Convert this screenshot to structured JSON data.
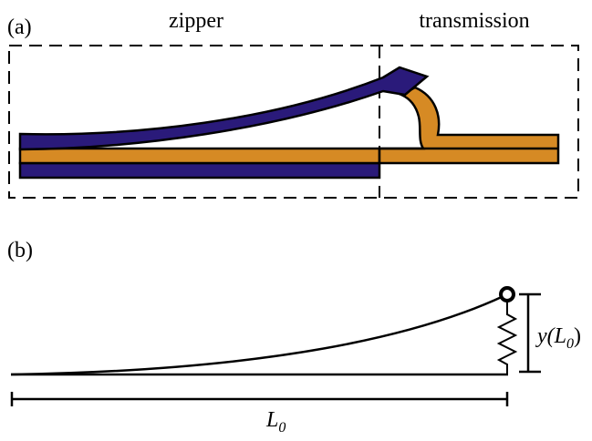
{
  "panel_a": {
    "label": "(a)",
    "zipper": "zipper",
    "transmission": "transmission"
  },
  "panel_b": {
    "label": "(b)",
    "height_label": {
      "main": "y(L",
      "sub": "0",
      "close": ")"
    },
    "length_label": {
      "main": "L",
      "sub": "0"
    }
  }
}
